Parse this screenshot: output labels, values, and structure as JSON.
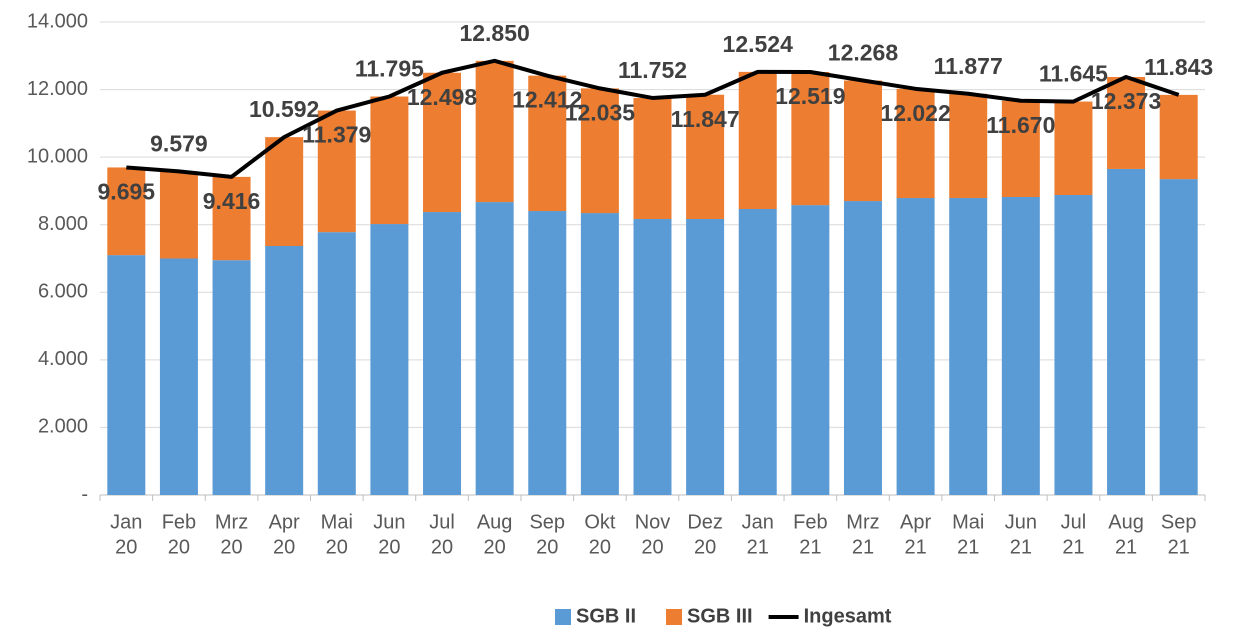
{
  "chart_data": {
    "type": "stacked-bar-line",
    "categories": [
      [
        "Jan",
        "20"
      ],
      [
        "Feb",
        "20"
      ],
      [
        "Mrz",
        "20"
      ],
      [
        "Apr",
        "20"
      ],
      [
        "Mai",
        "20"
      ],
      [
        "Jun",
        "20"
      ],
      [
        "Jul",
        "20"
      ],
      [
        "Aug",
        "20"
      ],
      [
        "Sep",
        "20"
      ],
      [
        "Okt",
        "20"
      ],
      [
        "Nov",
        "20"
      ],
      [
        "Dez",
        "20"
      ],
      [
        "Jan",
        "21"
      ],
      [
        "Feb",
        "21"
      ],
      [
        "Mrz",
        "21"
      ],
      [
        "Apr",
        "21"
      ],
      [
        "Mai",
        "21"
      ],
      [
        "Jun",
        "21"
      ],
      [
        "Jul",
        "21"
      ],
      [
        "Aug",
        "21"
      ],
      [
        "Sep",
        "21"
      ]
    ],
    "series": [
      {
        "name": "SGB II",
        "type": "bar",
        "color": "#5b9bd5",
        "values": [
          7100,
          7000,
          6950,
          7370,
          7780,
          8020,
          8375,
          8670,
          8405,
          8345,
          8170,
          8170,
          8465,
          8580,
          8700,
          8790,
          8790,
          8820,
          8880,
          9650,
          9350
        ]
      },
      {
        "name": "SGB III",
        "type": "bar",
        "color": "#ed7d31",
        "values": [
          2595,
          2579,
          2466,
          3222,
          3599,
          3775,
          4123,
          4180,
          4007,
          3690,
          3582,
          3677,
          4059,
          3939,
          3568,
          3232,
          3087,
          2850,
          2765,
          2723,
          2493
        ]
      },
      {
        "name": "Ingesamt",
        "type": "line",
        "color": "#000000",
        "values": [
          9695,
          9579,
          9416,
          10592,
          11379,
          11795,
          12498,
          12850,
          12412,
          12035,
          11752,
          11847,
          12524,
          12519,
          12268,
          12022,
          11877,
          11670,
          11645,
          12373,
          11843
        ],
        "value_labels": [
          "9.695",
          "9.579",
          "9.416",
          "10.592",
          "11.379",
          "11.795",
          "12.498",
          "12.850",
          "12.412",
          "12.035",
          "11.752",
          "11.847",
          "12.524",
          "12.519",
          "12.268",
          "12.022",
          "11.877",
          "11.670",
          "11.645",
          "12.373",
          "11.843"
        ]
      }
    ],
    "ylim": [
      0,
      14000
    ],
    "yticks": [
      {
        "value": 0,
        "label": "-"
      },
      {
        "value": 2000,
        "label": "2.000"
      },
      {
        "value": 4000,
        "label": "4.000"
      },
      {
        "value": 6000,
        "label": "6.000"
      },
      {
        "value": 8000,
        "label": "8.000"
      },
      {
        "value": 10000,
        "label": "10.000"
      },
      {
        "value": 12000,
        "label": "12.000"
      },
      {
        "value": 14000,
        "label": "14.000"
      }
    ],
    "grid": true,
    "legend": "bottom"
  }
}
